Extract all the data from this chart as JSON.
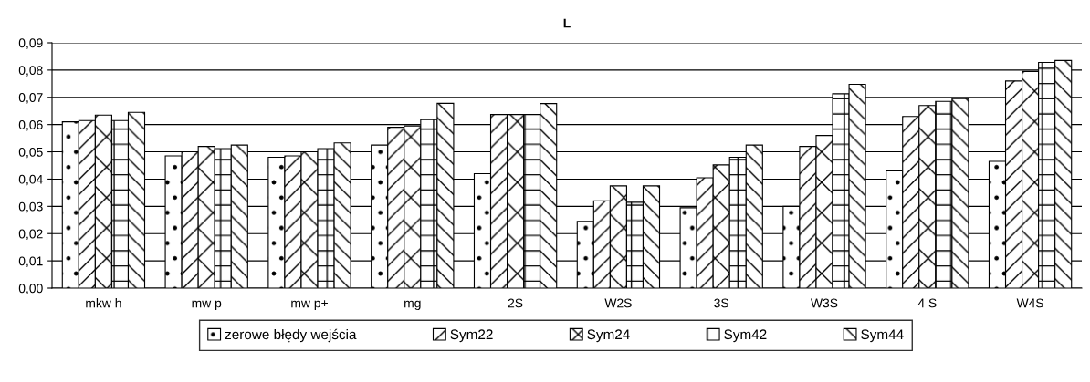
{
  "chart_data": {
    "type": "bar",
    "title": "L",
    "categories": [
      "mkw h",
      "mw p",
      "mw p+",
      "mg",
      "2S",
      "W2S",
      "3S",
      "W3S",
      "4 S",
      "W4S"
    ],
    "series": [
      {
        "name": "zerowe błędy wejścia",
        "color": "#000000",
        "values": [
          0.061,
          0.0485,
          0.048,
          0.0525,
          0.042,
          0.0245,
          0.0295,
          0.03,
          0.043,
          0.0465
        ]
      },
      {
        "name": "Sym22",
        "color": "#000000",
        "values": [
          0.0615,
          0.05,
          0.0485,
          0.059,
          0.0637,
          0.032,
          0.0405,
          0.052,
          0.063,
          0.076
        ]
      },
      {
        "name": "Sym24",
        "color": "#000000",
        "values": [
          0.0635,
          0.052,
          0.05,
          0.0595,
          0.0637,
          0.0375,
          0.0452,
          0.056,
          0.067,
          0.0795
        ]
      },
      {
        "name": "Sym42",
        "color": "#000000",
        "values": [
          0.0615,
          0.0512,
          0.0512,
          0.0618,
          0.0637,
          0.0315,
          0.048,
          0.0713,
          0.0685,
          0.0828
        ]
      },
      {
        "name": "Sym44",
        "color": "#000000",
        "values": [
          0.0645,
          0.0525,
          0.0533,
          0.0678,
          0.0677,
          0.0375,
          0.0525,
          0.0748,
          0.0695,
          0.0835
        ]
      }
    ],
    "ylim": [
      0,
      0.09
    ],
    "yticks": [
      {
        "value": 0,
        "label": "0,00"
      },
      {
        "value": 0.01,
        "label": "0,01"
      },
      {
        "value": 0.02,
        "label": "0,02"
      },
      {
        "value": 0.03,
        "label": "0,03"
      },
      {
        "value": 0.04,
        "label": "0,04"
      },
      {
        "value": 0.05,
        "label": "0,05"
      },
      {
        "value": 0.06,
        "label": "0,06"
      },
      {
        "value": 0.07,
        "label": "0,07"
      },
      {
        "value": 0.08,
        "label": "0,08"
      },
      {
        "value": 0.09,
        "label": "0,09"
      }
    ],
    "grid": "y",
    "legend": "bottom"
  }
}
